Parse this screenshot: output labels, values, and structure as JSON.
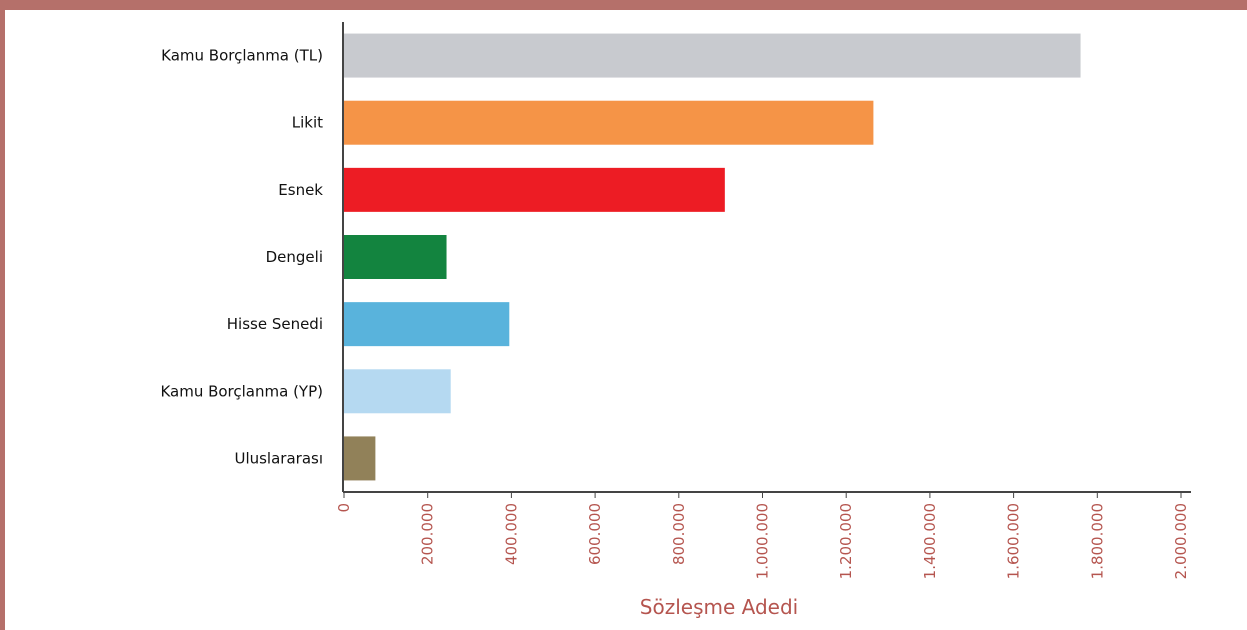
{
  "chart_data": {
    "type": "bar",
    "orientation": "horizontal",
    "categories": [
      "Kamu Borçlanma (TL)",
      "Likit",
      "Esnek",
      "Dengeli",
      "Hisse Senedi",
      "Kamu Borçlanma (YP)",
      "Uluslararası"
    ],
    "values": [
      1760000,
      1265000,
      910000,
      245000,
      395000,
      255000,
      75000
    ],
    "bar_colors": [
      "#c8cacf",
      "#f59447",
      "#ed1c24",
      "#13843f",
      "#59b3dc",
      "#b5d9f1",
      "#918159"
    ],
    "title": "",
    "xlabel": "Sözleşme Adedi",
    "ylabel": "",
    "xlim": [
      0,
      2000000
    ],
    "ticks": [
      "0",
      "200.000",
      "400.000",
      "600.000",
      "800.000",
      "1.000.000",
      "1.200.000",
      "1.400.000",
      "1.600.000",
      "1.800.000",
      "2.000.000"
    ],
    "tick_values": [
      0,
      200000,
      400000,
      600000,
      800000,
      1000000,
      1200000,
      1400000,
      1600000,
      1800000,
      2000000
    ],
    "grid": false,
    "legend": "none"
  },
  "colors": {
    "frame": "#b5706a",
    "axis": "#444444",
    "tick_text": "#b5554f",
    "category_text": "#111111"
  }
}
